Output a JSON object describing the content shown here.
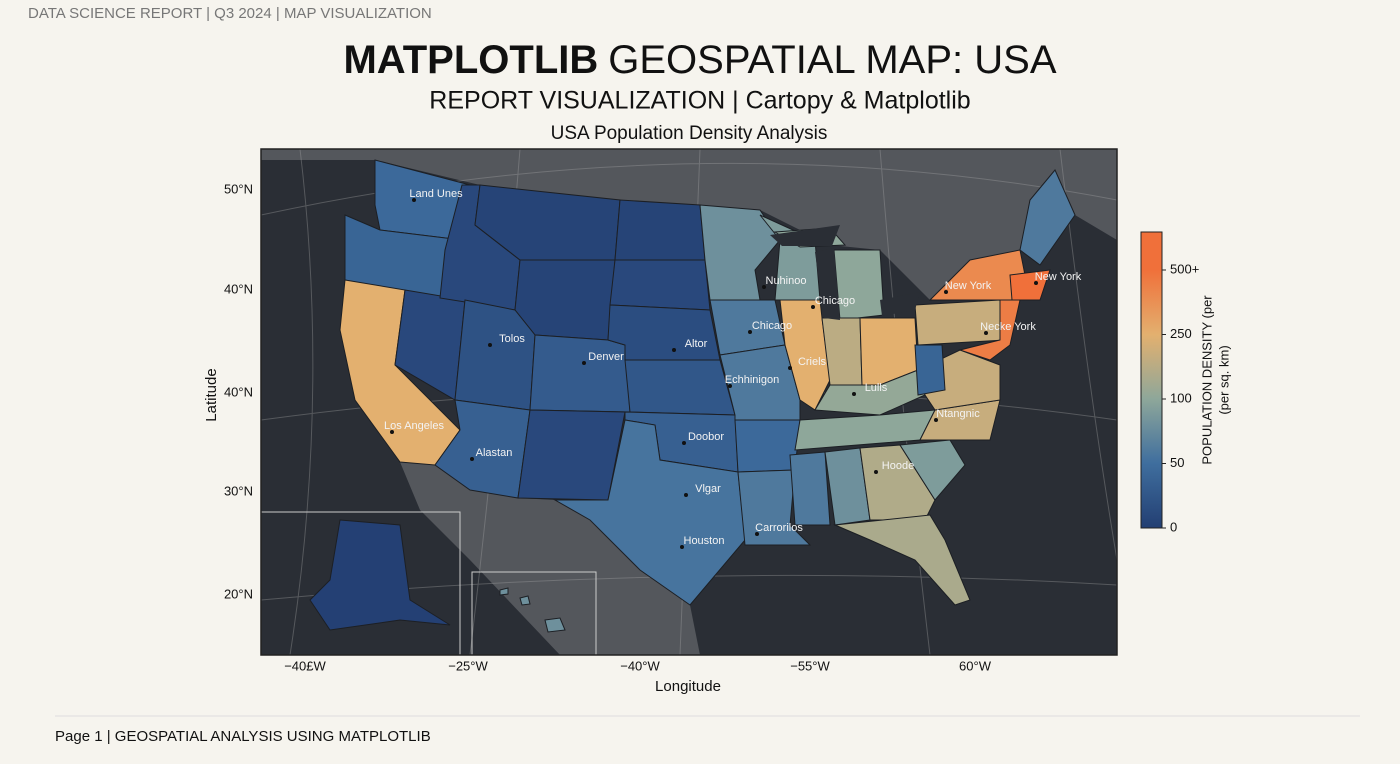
{
  "header": "DATA SCIENCE REPORT | Q3 2024 | MAP VISUALIZATION",
  "title_bold": "MATPLOTLIB",
  "title_rest": "GEOSPATIAL MAP: USA",
  "subtitle": "REPORT VISUALIZATION | Cartopy & Matplotlib",
  "footer": "Page 1 | GEOSPATIAL ANALYSIS USING MATPLOTLIB",
  "chart_data": {
    "type": "choropleth",
    "title": "USA Population Density Analysis",
    "xlabel": "Longitude",
    "ylabel": "Latitude",
    "xtick_labels": [
      "−40£W",
      "−25°W",
      "−40°W",
      "−55°W",
      "60°W"
    ],
    "ytick_labels": [
      "50°N",
      "40°N",
      "40°N",
      "30°N",
      "20°N"
    ],
    "values": [
      45,
      40,
      250,
      10,
      10,
      5,
      5,
      20,
      30,
      35,
      10,
      5,
      10,
      15,
      25,
      35,
      55,
      80,
      60,
      60,
      45,
      60,
      90,
      250,
      100,
      180,
      250,
      110,
      100,
      60,
      80,
      160,
      150,
      90,
      200,
      200,
      40,
      200,
      400,
      60,
      500,
      450,
      1,
      80
    ],
    "annotations": [
      "Land Unes",
      "Tolos",
      "Denver",
      "Altor",
      "Nuhinoo",
      "Chicago",
      "Chicago",
      "Criels",
      "Echhinigon",
      "Lulls",
      "New York",
      "New York",
      "Necke York",
      "Ntangnic",
      "Hoode",
      "Los Angeles",
      "Alastan",
      "Doobor",
      "Vlgar",
      "Houston",
      "Carrorilos"
    ],
    "colorbar": {
      "label_lines": [
        "POPULATION DENSITY (per",
        "(per sq. km)"
      ],
      "ticks": [
        0,
        50,
        100,
        250,
        {
          "value": 500,
          "label": "500+"
        }
      ],
      "colors": [
        "#233f73",
        "#3f6e9e",
        "#8ea79a",
        "#e3b06f",
        "#f0703a"
      ]
    }
  }
}
